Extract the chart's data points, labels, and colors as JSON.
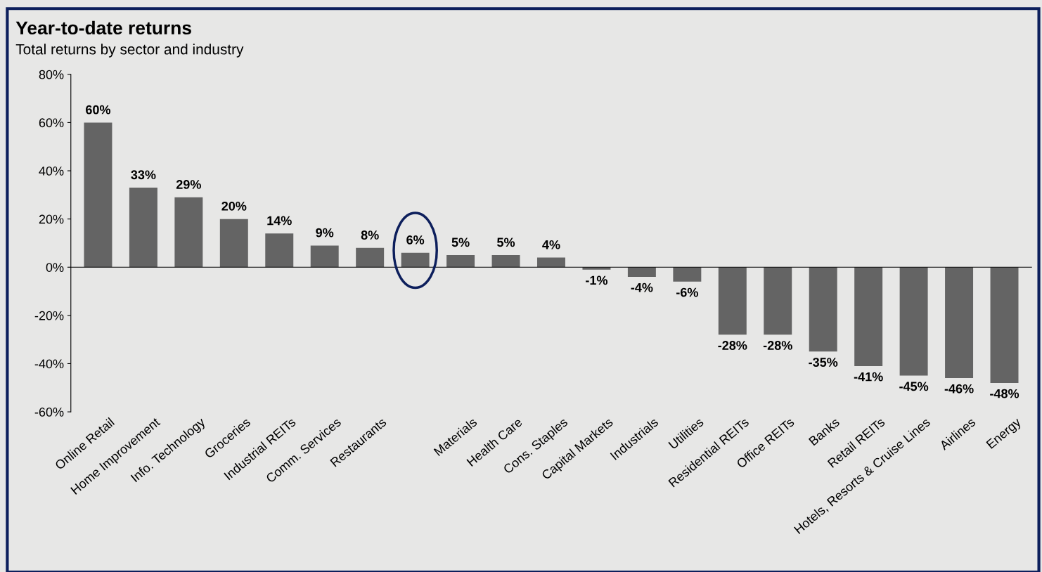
{
  "chart_data": {
    "type": "bar",
    "title": "Year-to-date returns",
    "subtitle": "Total returns by sector and industry",
    "categories": [
      "Online Retail",
      "Home Improvement",
      "Info. Technology",
      "Groceries",
      "Industrial REITs",
      "Comm. Services",
      "Restaurants",
      null,
      "Materials",
      "Health Care",
      "Cons. Staples",
      "Capital Markets",
      "Industrials",
      "Utilities",
      "Residential REITs",
      "Office REITs",
      "Banks",
      "Retail REITs",
      "Hotels, Resorts & Cruise Lines",
      "Airlines",
      "Energy"
    ],
    "values": [
      60,
      33,
      29,
      20,
      14,
      9,
      8,
      6,
      5,
      5,
      4,
      -1,
      -4,
      -6,
      -28,
      -28,
      -35,
      -41,
      -45,
      -46,
      -48
    ],
    "value_labels": [
      "60%",
      "33%",
      "29%",
      "20%",
      "14%",
      "9%",
      "8%",
      "6%",
      "5%",
      "5%",
      "4%",
      "-1%",
      "-4%",
      "-6%",
      "-28%",
      "-28%",
      "-35%",
      "-41%",
      "-45%",
      "-46%",
      "-48%"
    ],
    "color": "#646464",
    "ylim": [
      -60,
      80
    ],
    "yticks": [
      {
        "value": -60,
        "label": "-60%"
      },
      {
        "value": -40,
        "label": "-40%"
      },
      {
        "value": -20,
        "label": "-20%"
      },
      {
        "value": 0,
        "label": "0%"
      },
      {
        "value": 20,
        "label": "20%"
      },
      {
        "value": 40,
        "label": "40%"
      },
      {
        "value": 60,
        "label": "60%"
      },
      {
        "value": 80,
        "label": "80%"
      }
    ],
    "legend": false
  }
}
